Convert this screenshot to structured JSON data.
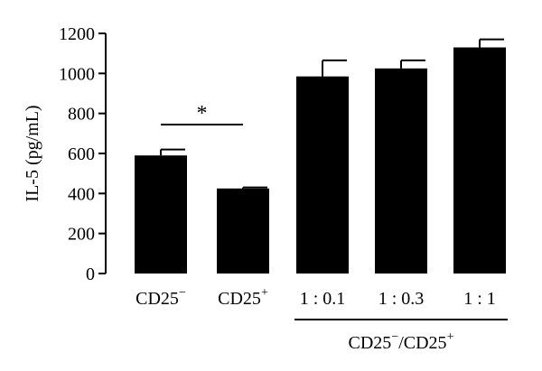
{
  "chart_data": {
    "type": "bar",
    "ylabel": "IL-5 (pg/mL)",
    "ylim": [
      0,
      1200
    ],
    "yticks": [
      0,
      200,
      400,
      600,
      800,
      1000,
      1200
    ],
    "ytick_labels": [
      "0",
      "200",
      "400",
      "600",
      "800",
      "1000",
      "1200"
    ],
    "bar_color": "#000000",
    "categories": [
      {
        "main": "CD25",
        "sup": "−"
      },
      {
        "main": "CD25",
        "sup": "+"
      },
      {
        "main": "1 : 0.1",
        "sup": ""
      },
      {
        "main": "1 : 0.3",
        "sup": ""
      },
      {
        "main": "1 : 1",
        "sup": ""
      }
    ],
    "values": [
      590,
      425,
      985,
      1025,
      1130
    ],
    "errors": [
      30,
      5,
      80,
      40,
      40
    ],
    "significance": {
      "from": 0,
      "to": 1,
      "label": "*"
    },
    "group_label": {
      "from": 2,
      "to": 4,
      "parts": [
        {
          "text": "CD25",
          "sup": false
        },
        {
          "text": "−",
          "sup": true
        },
        {
          "text": "/CD25",
          "sup": false
        },
        {
          "text": "+",
          "sup": true
        }
      ]
    }
  }
}
